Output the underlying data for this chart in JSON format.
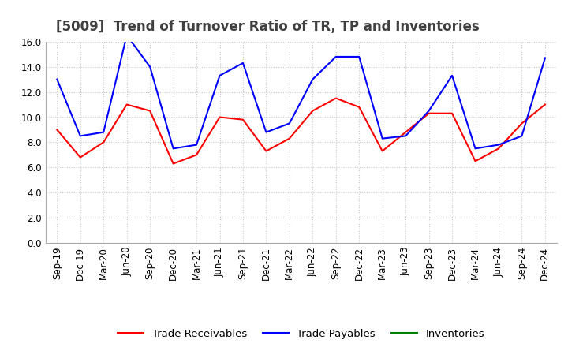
{
  "title": "[5009]  Trend of Turnover Ratio of TR, TP and Inventories",
  "x_labels": [
    "Sep-19",
    "Dec-19",
    "Mar-20",
    "Jun-20",
    "Sep-20",
    "Dec-20",
    "Mar-21",
    "Jun-21",
    "Sep-21",
    "Dec-21",
    "Mar-22",
    "Jun-22",
    "Sep-22",
    "Dec-22",
    "Mar-23",
    "Jun-23",
    "Sep-23",
    "Dec-23",
    "Mar-24",
    "Jun-24",
    "Sep-24",
    "Dec-24"
  ],
  "trade_receivables": [
    9.0,
    6.8,
    8.0,
    11.0,
    10.5,
    6.3,
    7.0,
    10.0,
    9.8,
    7.3,
    8.3,
    10.5,
    11.5,
    10.8,
    7.3,
    8.8,
    10.3,
    10.3,
    6.5,
    7.5,
    9.5,
    11.0
  ],
  "trade_payables": [
    13.0,
    8.5,
    8.8,
    16.5,
    14.0,
    7.5,
    7.8,
    13.3,
    14.3,
    8.8,
    9.5,
    13.0,
    14.8,
    14.8,
    8.3,
    8.5,
    10.5,
    13.3,
    7.5,
    7.8,
    8.5,
    14.7
  ],
  "inventories": [
    null,
    null,
    null,
    null,
    null,
    null,
    null,
    null,
    null,
    null,
    null,
    null,
    null,
    null,
    null,
    null,
    null,
    null,
    null,
    null,
    null,
    null
  ],
  "ylim": [
    0.0,
    16.0
  ],
  "yticks": [
    0.0,
    2.0,
    4.0,
    6.0,
    8.0,
    10.0,
    12.0,
    14.0,
    16.0
  ],
  "tr_color": "#ff0000",
  "tp_color": "#0000ff",
  "inv_color": "#008000",
  "grid_color": "#c8c8c8",
  "bg_color": "#ffffff",
  "title_color": "#404040",
  "title_fontsize": 12,
  "tick_fontsize": 8.5,
  "legend_fontsize": 9.5
}
